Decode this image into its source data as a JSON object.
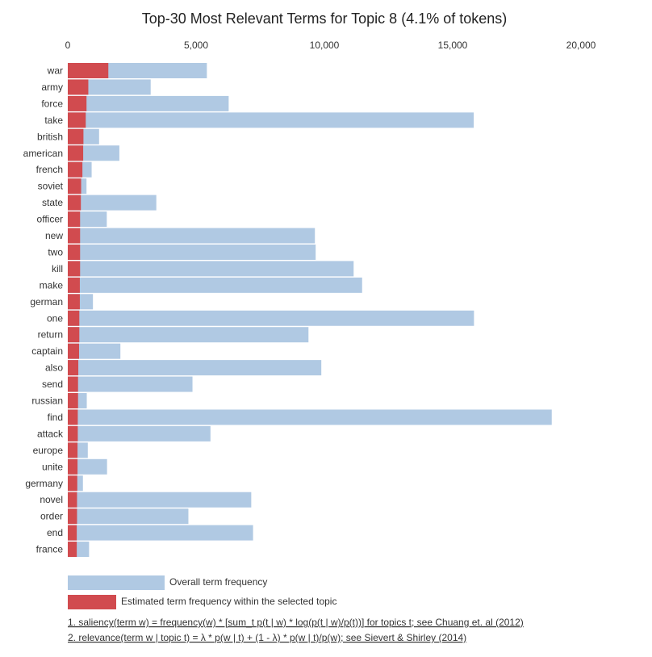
{
  "chart_data": {
    "type": "bar",
    "title": "Top-30 Most Relevant Terms for Topic 8 (4.1% of tokens)",
    "orientation": "horizontal",
    "xlim": [
      0,
      20500
    ],
    "x_ticks": [
      0,
      5000,
      10000,
      15000,
      20000
    ],
    "x_tick_labels": [
      "0",
      "5,000",
      "10,000",
      "15,000",
      "20,000"
    ],
    "categories": [
      "war",
      "army",
      "force",
      "take",
      "british",
      "american",
      "french",
      "soviet",
      "state",
      "officer",
      "new",
      "two",
      "kill",
      "make",
      "german",
      "one",
      "return",
      "captain",
      "also",
      "send",
      "russian",
      "find",
      "attack",
      "europe",
      "unite",
      "germany",
      "novel",
      "order",
      "end",
      "france"
    ],
    "series": [
      {
        "name": "Overall term frequency",
        "color": "#b0c9e3",
        "values": [
          5420,
          3230,
          6270,
          15820,
          1220,
          2010,
          930,
          730,
          3450,
          1520,
          9630,
          9660,
          11140,
          11470,
          980,
          15830,
          9380,
          2050,
          9880,
          4860,
          740,
          18860,
          5560,
          780,
          1530,
          590,
          7150,
          4700,
          7220,
          830
        ]
      },
      {
        "name": "Estimated term frequency within the selected topic",
        "color": "#d14b4f",
        "values": [
          1580,
          800,
          730,
          700,
          610,
          600,
          570,
          520,
          510,
          480,
          480,
          480,
          480,
          470,
          470,
          450,
          450,
          440,
          410,
          400,
          400,
          390,
          390,
          380,
          380,
          370,
          360,
          360,
          350,
          350
        ]
      }
    ],
    "legend": {
      "position": "bottom-left",
      "items": [
        {
          "label": "Overall term frequency",
          "color": "#b0c9e3"
        },
        {
          "label": "Estimated term frequency within the selected topic",
          "color": "#d14b4f"
        }
      ]
    },
    "notes": [
      "1. saliency(term w) = frequency(w) * [sum_t p(t | w) * log(p(t | w)/p(t))] for topics t; see Chuang et. al (2012)",
      "2. relevance(term w | topic t) = λ * p(w | t) + (1 - λ) * p(w | t)/p(w); see Sievert & Shirley (2014)"
    ]
  }
}
